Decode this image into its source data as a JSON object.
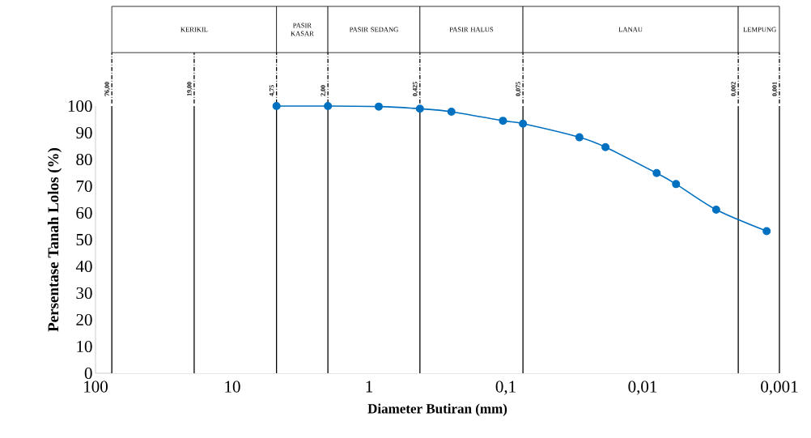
{
  "chart_data": {
    "type": "line",
    "xlabel": "Diameter Butiran (mm)",
    "ylabel": "Persentase Tanah Lolos (%)",
    "x": [
      4.75,
      2.0,
      0.85,
      0.425,
      0.25,
      0.105,
      0.075,
      0.029,
      0.0187,
      0.0079,
      0.0057,
      0.0029,
      0.00124
    ],
    "values": [
      100,
      100,
      99.8,
      99.0,
      97.9,
      94.5,
      93.4,
      88.3,
      84.6,
      74.9,
      70.8,
      61.2,
      53.2
    ],
    "color": "#0070c0",
    "marker": "circle",
    "line_style": "solid",
    "log": "x",
    "xlim": [
      100,
      0.001
    ],
    "ylim": [
      0,
      100
    ],
    "xticks": [
      100,
      10,
      1,
      {
        "value": 0.1,
        "label": "0,1"
      },
      {
        "value": 0.01,
        "label": "0,01"
      },
      {
        "value": 0.001,
        "label": "0,001"
      }
    ],
    "yticks": [
      0,
      10,
      20,
      30,
      40,
      50,
      60,
      70,
      80,
      90,
      100
    ],
    "ref_lines": [
      {
        "axis": "x",
        "value": 76,
        "label": "76,00"
      },
      {
        "axis": "x",
        "value": 19,
        "label": "19,00"
      },
      {
        "axis": "x",
        "value": 4.75,
        "label": "4,75"
      },
      {
        "axis": "x",
        "value": 2.0,
        "label": "2,00"
      },
      {
        "axis": "x",
        "value": 0.425,
        "label": "0,425"
      },
      {
        "axis": "x",
        "value": 0.075,
        "label": "0,075"
      },
      {
        "axis": "x",
        "value": 0.002,
        "label": "0,002"
      },
      {
        "axis": "x",
        "value": 0.001,
        "label": "0,001"
      }
    ],
    "bands": [
      {
        "axis": "x",
        "from": 76,
        "to": 4.75,
        "label": "KERIKIL",
        "color": "#ffffff"
      },
      {
        "axis": "x",
        "from": 4.75,
        "to": 2.0,
        "label": "PASIR KASAR",
        "color": "#ffffff"
      },
      {
        "axis": "x",
        "from": 2.0,
        "to": 0.425,
        "label": "PASIR SEDANG",
        "color": "#ffffff"
      },
      {
        "axis": "x",
        "from": 0.425,
        "to": 0.075,
        "label": "PASIR HALUS",
        "color": "#ffffff"
      },
      {
        "axis": "x",
        "from": 0.075,
        "to": 0.002,
        "label": "LANAU",
        "color": "#ffffff"
      },
      {
        "axis": "x",
        "from": 0.002,
        "to": 0.001,
        "label": "LEMPUNG",
        "color": "#ffffff"
      }
    ]
  }
}
